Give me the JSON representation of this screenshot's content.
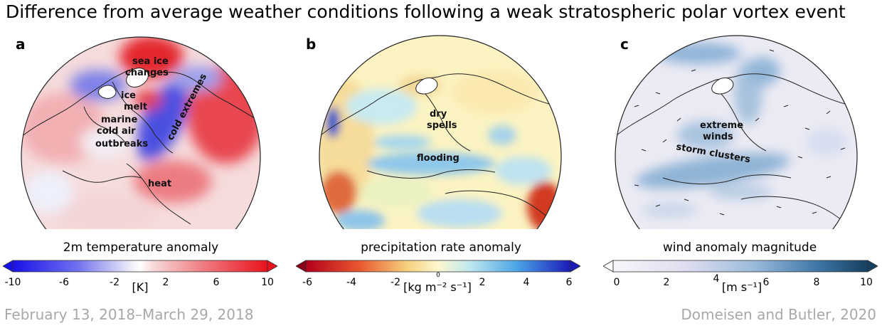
{
  "title": "Difference from average weather conditions following a weak stratospheric polar vortex event",
  "footer": {
    "date_range": "February 13, 2018–March 29, 2018",
    "credit": "Domeisen and Butler, 2020"
  },
  "colors": {
    "cold_blue": "#2a1fe6",
    "warm_red": "#e8121c",
    "dry_red": "#b3001b",
    "wet_blue": "#1c1ab8",
    "wind_light": "#eeeef6",
    "wind_dark": "#16405f"
  },
  "chart_data": [
    {
      "type": "heatmap",
      "panel_label": "a",
      "colorbar_label": "2m temperature anomaly",
      "units": "[K]",
      "range": [
        -10,
        10
      ],
      "ticks": [
        "-10",
        "-6",
        "-2",
        "2",
        "6",
        "10"
      ],
      "annotations": [
        "sea ice",
        "changes",
        "ice",
        "melt",
        "cold extremes",
        "marine",
        "cold air",
        "outbreaks",
        "heat"
      ]
    },
    {
      "type": "heatmap",
      "panel_label": "b",
      "colorbar_label": "precipitation rate anomaly",
      "units": "[kg m⁻² s⁻¹]",
      "range": [
        -6,
        6
      ],
      "ticks": [
        "-6",
        "-4",
        "-2",
        "0",
        "2",
        "4",
        "6"
      ],
      "annotations": [
        "dry",
        "spells",
        "flooding"
      ]
    },
    {
      "type": "heatmap",
      "panel_label": "c",
      "colorbar_label": "wind anomaly magnitude",
      "units": "[m s⁻¹]",
      "range": [
        0,
        10
      ],
      "ticks": [
        "0",
        "2",
        "4",
        "6",
        "8",
        "10"
      ],
      "annotations": [
        "extreme",
        "winds",
        "storm clusters"
      ]
    }
  ]
}
